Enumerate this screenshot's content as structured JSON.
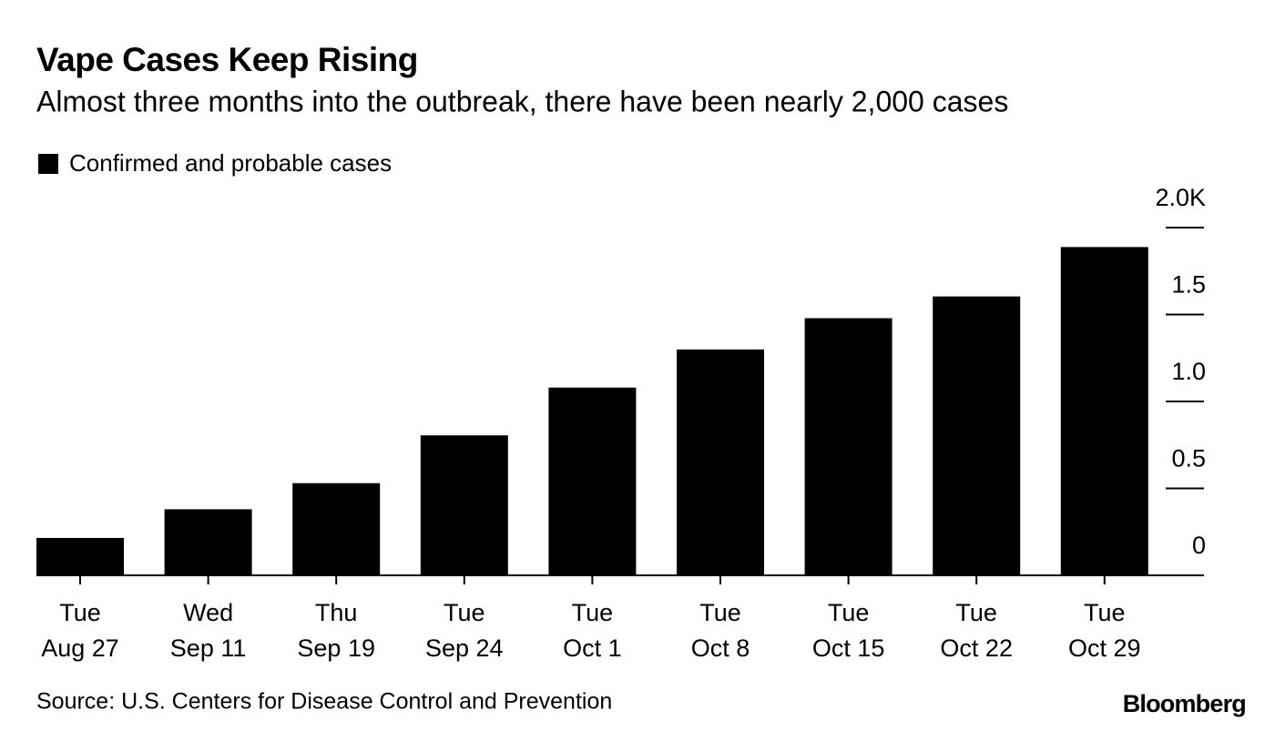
{
  "chart_data": {
    "type": "bar",
    "title": "Vape Cases Keep Rising",
    "subtitle": "Almost three months into the outbreak, there have been nearly 2,000 cases",
    "categories": [
      [
        "Tue",
        "Aug 27"
      ],
      [
        "Wed",
        "Sep 11"
      ],
      [
        "Thu",
        "Sep 19"
      ],
      [
        "Tue",
        "Sep 24"
      ],
      [
        "Tue",
        "Oct 1"
      ],
      [
        "Tue",
        "Oct 8"
      ],
      [
        "Tue",
        "Oct 15"
      ],
      [
        "Tue",
        "Oct 22"
      ],
      [
        "Tue",
        "Oct 29"
      ]
    ],
    "series": [
      {
        "name": "Confirmed and probable cases",
        "color": "#000000",
        "values": [
          0.215,
          0.38,
          0.53,
          0.805,
          1.08,
          1.299,
          1.479,
          1.604,
          1.888
        ]
      }
    ],
    "ylim": [
      0,
      2
    ],
    "yticks": [
      0,
      0.5,
      {
        "value": 1,
        "label": "1.0"
      },
      1.5,
      {
        "value": 2,
        "label": "2.0K"
      }
    ],
    "source": "Source: U.S. Centers for Disease Control and Prevention",
    "brand": "Bloomberg"
  }
}
